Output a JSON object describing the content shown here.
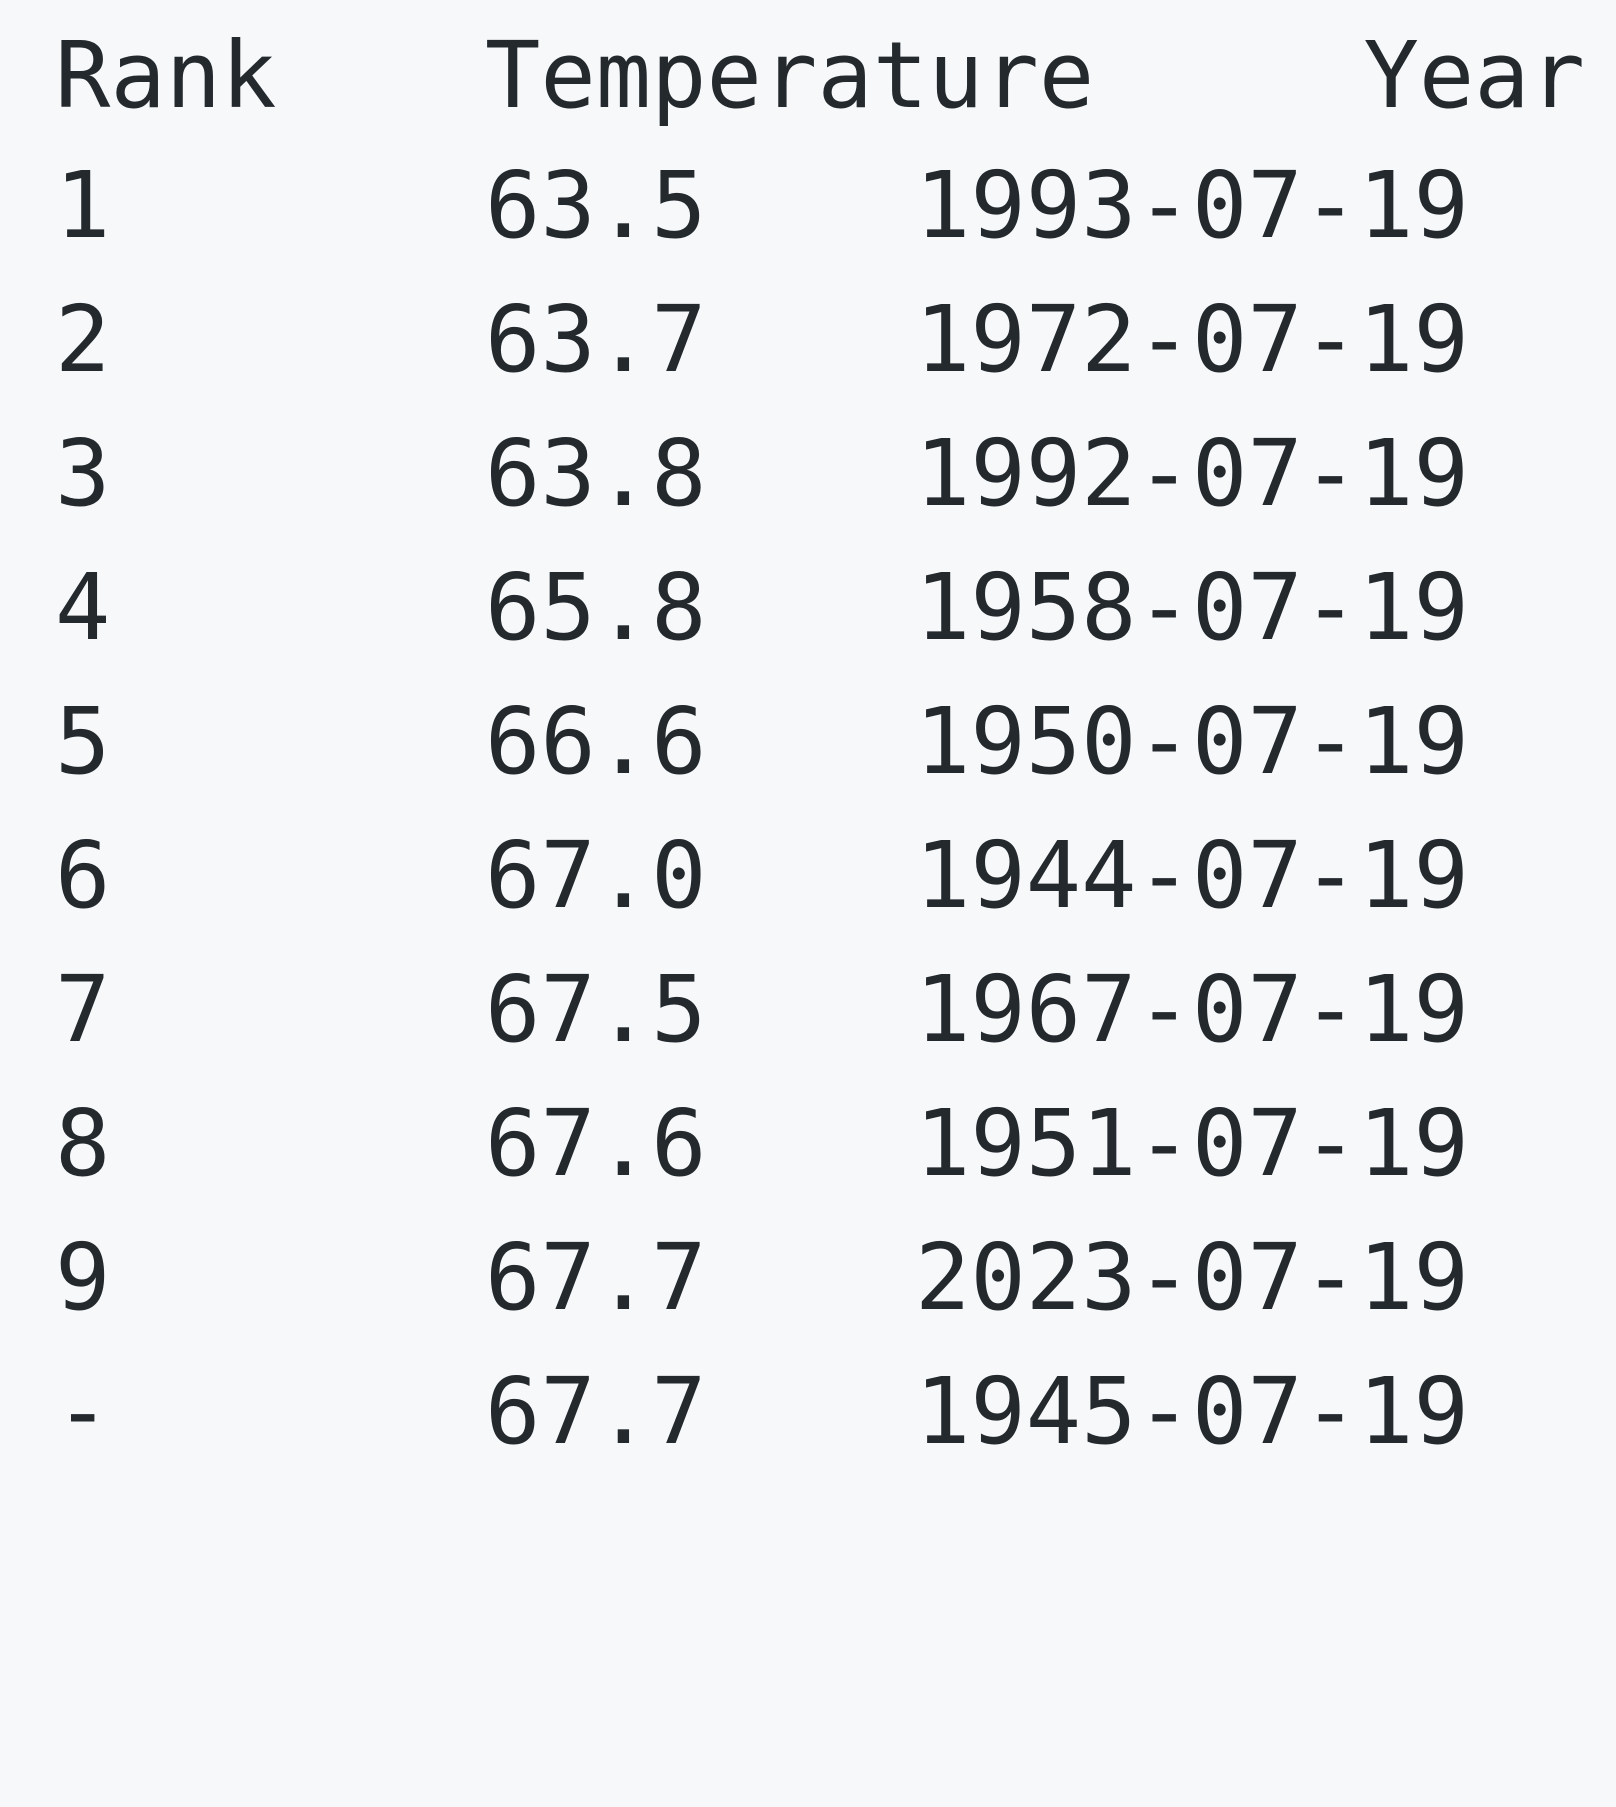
{
  "table": {
    "headers": {
      "rank": "Rank",
      "temperature": "Temperature",
      "year": "Year"
    },
    "rows": [
      {
        "rank": "1",
        "temperature": "63.5",
        "year": "1993-07-19"
      },
      {
        "rank": "2",
        "temperature": "63.7",
        "year": "1972-07-19"
      },
      {
        "rank": "3",
        "temperature": "63.8",
        "year": "1992-07-19"
      },
      {
        "rank": "4",
        "temperature": "65.8",
        "year": "1958-07-19"
      },
      {
        "rank": "5",
        "temperature": "66.6",
        "year": "1950-07-19"
      },
      {
        "rank": "6",
        "temperature": "67.0",
        "year": "1944-07-19"
      },
      {
        "rank": "7",
        "temperature": "67.5",
        "year": "1967-07-19"
      },
      {
        "rank": "8",
        "temperature": "67.6",
        "year": "1951-07-19"
      },
      {
        "rank": "9",
        "temperature": "67.7",
        "year": "2023-07-19"
      },
      {
        "rank": "-",
        "temperature": "67.7",
        "year": "1945-07-19"
      }
    ]
  }
}
